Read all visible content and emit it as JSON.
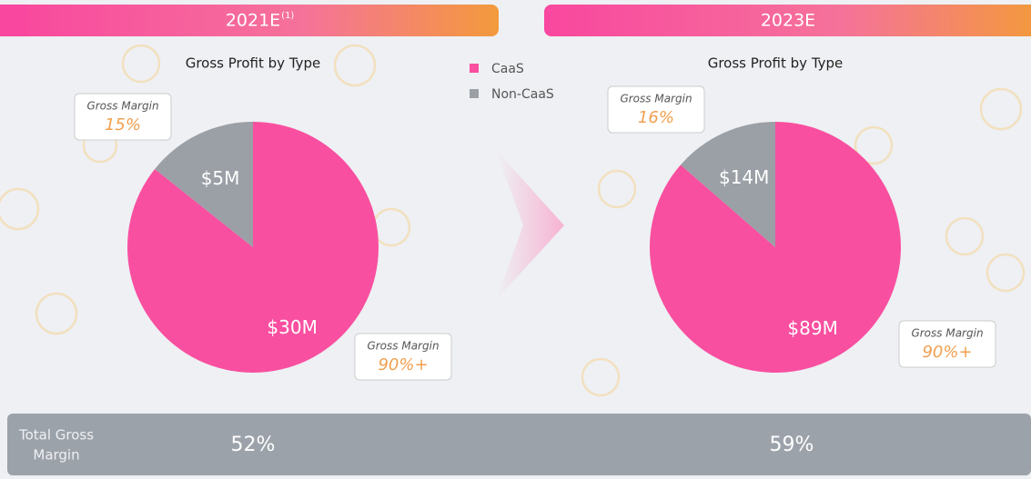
{
  "chart_data": [
    {
      "type": "pie",
      "header": "2021E",
      "header_note": "(1)",
      "title": "Gross Profit by Type",
      "categories": [
        "CaaS",
        "Non-CaaS"
      ],
      "values": [
        30,
        5
      ],
      "value_labels": [
        "$30M",
        "$5M"
      ],
      "colors": [
        "#f94fa0",
        "#9ba0a6"
      ],
      "annotations": [
        {
          "label": "Gross Margin",
          "text": "15%"
        },
        {
          "label": "Gross Margin",
          "text": "90%+"
        }
      ],
      "total_gross_margin": "52%"
    },
    {
      "type": "pie",
      "header": "2023E",
      "title": "Gross Profit by Type",
      "categories": [
        "CaaS",
        "Non-CaaS"
      ],
      "values": [
        89,
        14
      ],
      "value_labels": [
        "$89M",
        "$14M"
      ],
      "colors": [
        "#f94fa0",
        "#9ba0a6"
      ],
      "annotations": [
        {
          "label": "Gross Margin",
          "text": "16%"
        },
        {
          "label": "Gross Margin",
          "text": "90%+"
        }
      ],
      "total_gross_margin": "59%"
    }
  ],
  "footer": {
    "label_lines": [
      "Total Gross",
      "Margin"
    ]
  }
}
